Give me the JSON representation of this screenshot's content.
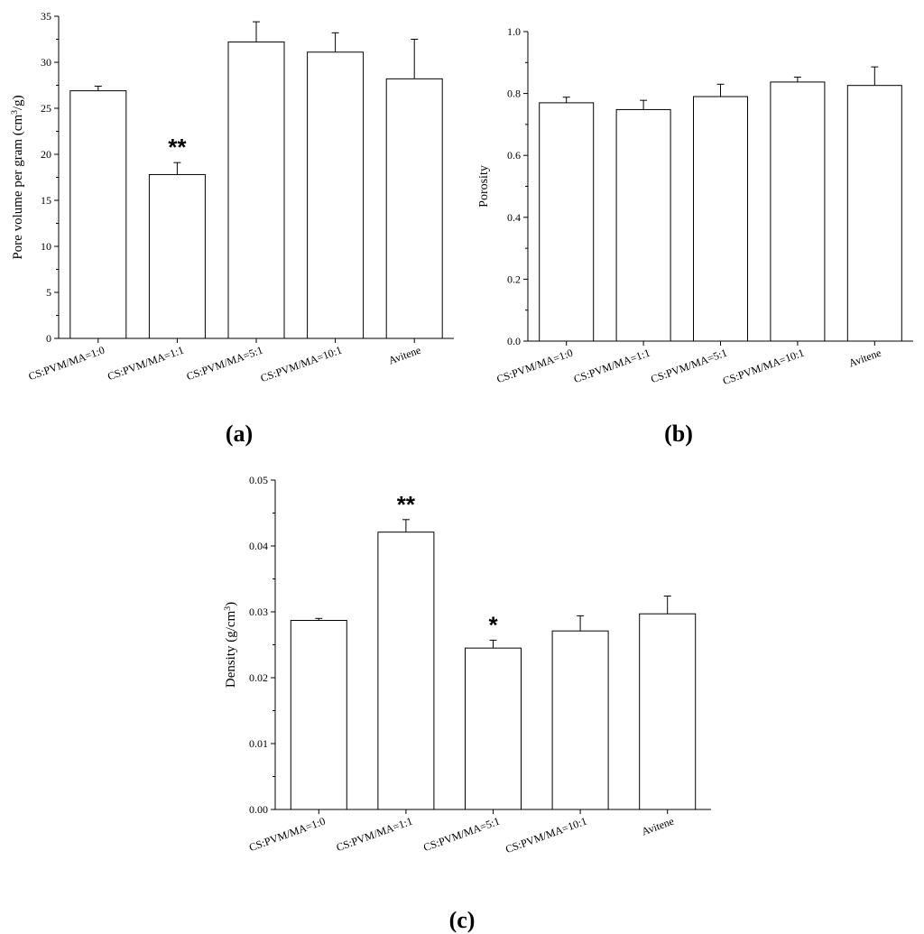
{
  "figure": {
    "captions": [
      "(a)",
      "(b)",
      "(c)"
    ]
  },
  "chart_data": [
    {
      "type": "bar",
      "panel": "a",
      "categories": [
        "CS:PVM/MA=1:0",
        "CS:PVM/MA=1:1",
        "CS:PVM/MA=5:1",
        "CS:PVM/MA=10:1",
        "Avitene"
      ],
      "values": [
        26.9,
        17.8,
        32.2,
        31.1,
        28.2
      ],
      "errors": [
        0.5,
        1.3,
        2.2,
        2.1,
        4.3
      ],
      "annotations": [
        "",
        "**",
        "",
        "",
        ""
      ],
      "xlabel": "",
      "ylabel_main": "Pore volume per gram (cm",
      "ylabel_sup": "3",
      "ylabel_tail": "/g)",
      "ylim": [
        0,
        35
      ],
      "yticks": [
        0,
        5,
        10,
        15,
        20,
        25,
        30,
        35
      ],
      "yticklabels": [
        "0",
        "5",
        "10",
        "15",
        "20",
        "25",
        "30",
        "35"
      ],
      "grid": false,
      "legend": "none"
    },
    {
      "type": "bar",
      "panel": "b",
      "categories": [
        "CS:PVM/MA=1:0",
        "CS:PVM/MA=1:1",
        "CS:PVM/MA=5:1",
        "CS:PVM/MA=10:1",
        "Avitene"
      ],
      "values": [
        0.77,
        0.748,
        0.79,
        0.837,
        0.826
      ],
      "errors": [
        0.018,
        0.03,
        0.04,
        0.016,
        0.06
      ],
      "annotations": [
        "",
        "",
        "",
        "",
        ""
      ],
      "xlabel": "",
      "ylabel_main": "Porosity",
      "ylabel_sup": "",
      "ylabel_tail": "",
      "ylim": [
        0,
        1.0
      ],
      "yticks": [
        0,
        0.2,
        0.4,
        0.6,
        0.8,
        1.0
      ],
      "yticklabels": [
        "0.0",
        "0.2",
        "0.4",
        "0.6",
        "0.8",
        "1.0"
      ],
      "grid": false,
      "legend": "none"
    },
    {
      "type": "bar",
      "panel": "c",
      "categories": [
        "CS:PVM/MA=1:0",
        "CS:PVM/MA=1:1",
        "CS:PVM/MA=5:1",
        "CS:PVM/MA=10:1",
        "Avitene"
      ],
      "values": [
        0.0287,
        0.0421,
        0.0245,
        0.0271,
        0.0297
      ],
      "errors": [
        0.0003,
        0.0019,
        0.0012,
        0.0023,
        0.0027
      ],
      "annotations": [
        "",
        "**",
        "*",
        "",
        ""
      ],
      "xlabel": "",
      "ylabel_main": "Density (g/cm",
      "ylabel_sup": "3",
      "ylabel_tail": ")",
      "ylim": [
        0,
        0.05
      ],
      "yticks": [
        0,
        0.01,
        0.02,
        0.03,
        0.04,
        0.05
      ],
      "yticklabels": [
        "0.00",
        "0.01",
        "0.02",
        "0.03",
        "0.04",
        "0.05"
      ],
      "grid": false,
      "legend": "none"
    }
  ]
}
